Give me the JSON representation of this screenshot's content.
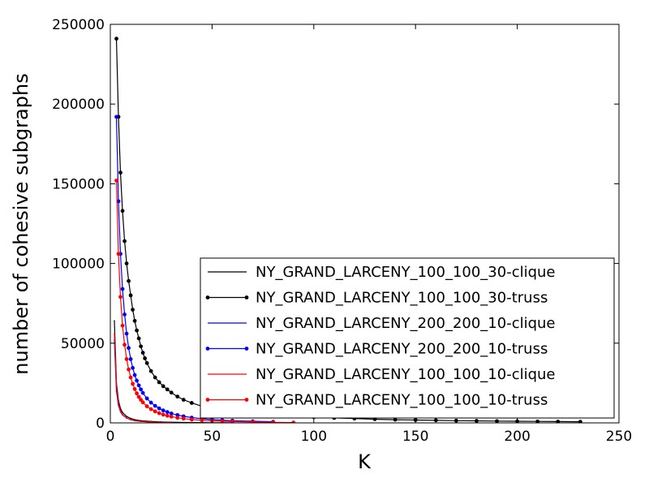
{
  "chart_data": {
    "type": "line",
    "title": "",
    "xlabel": "K",
    "ylabel": "number of cohesive subgraphs",
    "xlim": [
      0,
      250
    ],
    "ylim": [
      0,
      250000
    ],
    "xticks": [
      0,
      50,
      100,
      150,
      200,
      250
    ],
    "yticks": [
      0,
      50000,
      100000,
      150000,
      200000,
      250000
    ],
    "grid": false,
    "legend_position": "lower-right",
    "series": [
      {
        "name": "NY_GRAND_LARCENY_100_100_30-clique",
        "color": "#000000",
        "marker": "pixel",
        "x": [
          2,
          3,
          4,
          5,
          6,
          8,
          10,
          12,
          15,
          20,
          25,
          30,
          40,
          50,
          60
        ],
        "y": [
          64000,
          25000,
          14000,
          9000,
          6500,
          4000,
          2800,
          2000,
          1400,
          900,
          600,
          400,
          200,
          100,
          50
        ]
      },
      {
        "name": "NY_GRAND_LARCENY_100_100_30-truss",
        "color": "#000000",
        "marker": "dot",
        "x": [
          3,
          4,
          5,
          6,
          7,
          8,
          9,
          10,
          11,
          12,
          13,
          14,
          15,
          16,
          17,
          18,
          20,
          22,
          24,
          26,
          28,
          30,
          33,
          36,
          40,
          45,
          50,
          60,
          70,
          80,
          90,
          100,
          110,
          120,
          130,
          140,
          150,
          160,
          170,
          180,
          190,
          200,
          210,
          220,
          231
        ],
        "y": [
          241000,
          192000,
          157000,
          133000,
          114000,
          100000,
          89000,
          80000,
          71000,
          64000,
          58000,
          53000,
          48000,
          44000,
          40500,
          37500,
          32500,
          28500,
          25500,
          23000,
          21000,
          19000,
          16500,
          14500,
          12500,
          10500,
          9000,
          7200,
          6000,
          5000,
          4200,
          3600,
          3100,
          2700,
          2300,
          2000,
          1800,
          1600,
          1400,
          1250,
          1100,
          1000,
          900,
          800,
          700
        ]
      },
      {
        "name": "NY_GRAND_LARCENY_200_200_10-clique",
        "color": "#0000ff",
        "marker": "pixel",
        "x": [
          2,
          3,
          4,
          5,
          6,
          8,
          10,
          12,
          15,
          20,
          25,
          30
        ],
        "y": [
          52000,
          20000,
          11000,
          7000,
          5000,
          3000,
          2000,
          1400,
          900,
          500,
          300,
          150
        ]
      },
      {
        "name": "NY_GRAND_LARCENY_200_200_10-truss",
        "color": "#0000ff",
        "marker": "dot",
        "x": [
          3,
          4,
          5,
          6,
          7,
          8,
          9,
          10,
          11,
          12,
          13,
          14,
          15,
          16,
          18,
          20,
          22,
          24,
          26,
          28,
          30,
          33,
          36,
          40,
          45,
          50,
          55,
          60,
          70,
          80
        ],
        "y": [
          192000,
          139000,
          106000,
          84000,
          68000,
          56000,
          47000,
          40000,
          34500,
          30000,
          26500,
          23500,
          21000,
          18800,
          15300,
          12700,
          10700,
          9100,
          7800,
          6800,
          5900,
          4900,
          4100,
          3300,
          2600,
          2100,
          1700,
          1400,
          1000,
          700
        ]
      },
      {
        "name": "NY_GRAND_LARCENY_100_100_10-clique",
        "color": "#ff0000",
        "marker": "pixel",
        "x": [
          2,
          3,
          4,
          5,
          6,
          8,
          10,
          12,
          15,
          20,
          25,
          30
        ],
        "y": [
          56000,
          22000,
          12000,
          7500,
          5200,
          3000,
          2000,
          1400,
          900,
          500,
          300,
          150
        ]
      },
      {
        "name": "NY_GRAND_LARCENY_100_100_10-truss",
        "color": "#ff0000",
        "marker": "dot",
        "x": [
          3,
          4,
          5,
          6,
          7,
          8,
          9,
          10,
          11,
          12,
          13,
          14,
          15,
          16,
          18,
          20,
          22,
          24,
          26,
          28,
          30,
          33,
          36,
          40,
          45,
          50,
          55,
          60,
          70,
          80,
          90
        ],
        "y": [
          152000,
          106000,
          79000,
          61000,
          49000,
          40000,
          33500,
          28500,
          24500,
          21200,
          18500,
          16300,
          14500,
          12900,
          10400,
          8600,
          7200,
          6100,
          5200,
          4500,
          3900,
          3200,
          2700,
          2100,
          1600,
          1300,
          1000,
          800,
          550,
          350,
          200
        ]
      }
    ]
  }
}
